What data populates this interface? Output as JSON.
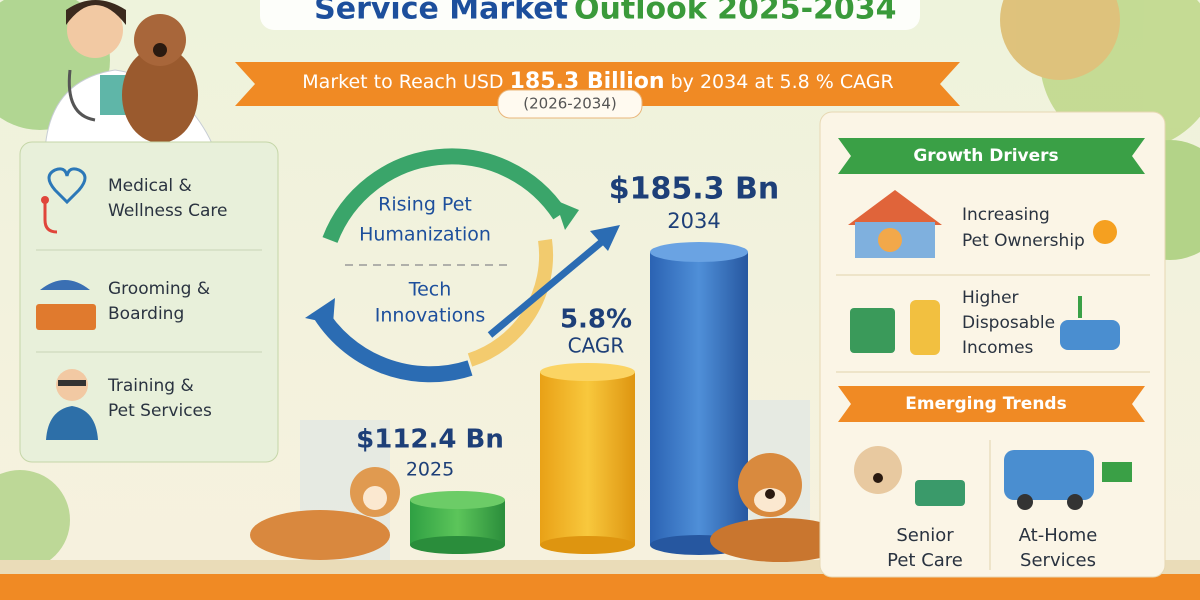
{
  "header": {
    "title_part1": "Service Market",
    "title_part2": "Outlook 2025-2034"
  },
  "banner": {
    "lead": "Market to Reach USD",
    "highlight": "185.3 Billion",
    "tail": "by 2034 at 5.8 % CAGR",
    "period": "(2026-2034)"
  },
  "services": [
    {
      "lines": [
        "Medical &",
        "Wellness Care"
      ]
    },
    {
      "lines": [
        "Grooming &",
        "Boarding"
      ]
    },
    {
      "lines": [
        "Training &",
        "Pet Services"
      ]
    }
  ],
  "cycle": [
    {
      "lines": [
        "Rising Pet",
        "Humanization"
      ]
    },
    {
      "lines": [
        "Tech",
        "Innovations"
      ]
    }
  ],
  "bars": [
    {
      "value_label": "$112.4 Bn",
      "year": "2025"
    },
    {
      "value_label": "5.8%",
      "year": "CAGR"
    },
    {
      "value_label": "$185.3 Bn",
      "year": "2034"
    }
  ],
  "growth_drivers": {
    "title": "Growth Drivers",
    "items": [
      {
        "lines": [
          "Increasing",
          "Pet Ownership"
        ]
      },
      {
        "lines": [
          "Higher",
          "Disposable",
          "Incomes"
        ]
      }
    ]
  },
  "emerging_trends": {
    "title": "Emerging Trends",
    "items": [
      {
        "lines": [
          "Senior",
          "Pet Care"
        ]
      },
      {
        "lines": [
          "At-Home",
          "Services"
        ]
      }
    ]
  }
}
